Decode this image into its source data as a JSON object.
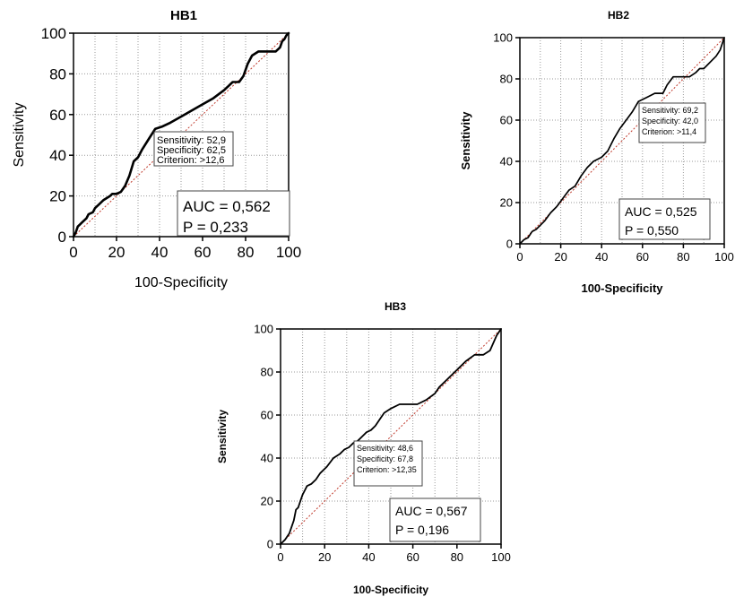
{
  "chart_data": [
    {
      "type": "line",
      "title": "HB1",
      "xlabel": "100-Specificity",
      "ylabel": "Sensitivity",
      "xlim": [
        0,
        100
      ],
      "ylim": [
        0,
        100
      ],
      "ticks": [
        0,
        20,
        40,
        60,
        80,
        100
      ],
      "grid": true,
      "series": [
        {
          "x": [
            0,
            1,
            2,
            3,
            4,
            6,
            7,
            9,
            10,
            12,
            14,
            17,
            18,
            20,
            22,
            24,
            26,
            28,
            30,
            32,
            35,
            38,
            41,
            45,
            50,
            55,
            60,
            65,
            70,
            74,
            77,
            79,
            81,
            83,
            86,
            88,
            90,
            92,
            94,
            96,
            97,
            98,
            99,
            100
          ],
          "y": [
            0,
            2,
            5,
            6,
            7,
            9,
            11,
            12,
            14,
            16,
            18,
            20,
            21,
            21,
            22,
            25,
            30,
            37,
            39,
            43,
            48,
            53,
            54,
            56,
            59,
            62,
            65,
            68,
            72,
            76,
            76,
            79,
            85,
            89,
            91,
            91,
            91,
            91,
            91,
            93,
            96,
            97,
            99,
            100
          ]
        }
      ],
      "annotation": {
        "lines": [
          "Sensitivity: 52,9",
          "Specificity: 62,5",
          "Criterion: >12,6"
        ]
      },
      "stats": {
        "auc": "AUC = 0,562",
        "p": "P = 0,233"
      }
    },
    {
      "type": "line",
      "title": "HB2",
      "xlabel": "100-Specificity",
      "ylabel": "Sensitivity",
      "xlim": [
        0,
        100
      ],
      "ylim": [
        0,
        100
      ],
      "ticks": [
        0,
        20,
        40,
        60,
        80,
        100
      ],
      "grid": true,
      "series": [
        {
          "x": [
            0,
            2,
            4,
            6,
            8,
            10,
            12,
            15,
            18,
            21,
            24,
            27,
            30,
            33,
            36,
            40,
            43,
            46,
            49,
            52,
            55,
            58,
            62,
            66,
            70,
            72,
            75,
            78,
            81,
            83,
            86,
            88,
            90,
            92,
            94,
            96,
            98,
            100
          ],
          "y": [
            0,
            2,
            3,
            6,
            7,
            9,
            11,
            15,
            18,
            22,
            26,
            28,
            33,
            37,
            40,
            42,
            45,
            51,
            56,
            60,
            64,
            69,
            71,
            73,
            73,
            77,
            81,
            81,
            81,
            81,
            83,
            85,
            85,
            87,
            89,
            91,
            94,
            100
          ]
        }
      ],
      "annotation": {
        "lines": [
          "Sensitivity: 69,2",
          "Specificity: 42,0",
          "Criterion: >11,4"
        ]
      },
      "stats": {
        "auc": "AUC = 0,525",
        "p": "P = 0,550"
      }
    },
    {
      "type": "line",
      "title": "HB3",
      "xlabel": "100-Specificity",
      "ylabel": "Sensitivity",
      "xlim": [
        0,
        100
      ],
      "ylim": [
        0,
        100
      ],
      "ticks": [
        0,
        20,
        40,
        60,
        80,
        100
      ],
      "grid": true,
      "series": [
        {
          "x": [
            0,
            2,
            4,
            5,
            6,
            7,
            8,
            9,
            10,
            11,
            12,
            14,
            16,
            18,
            21,
            24,
            27,
            29,
            31,
            33,
            35,
            37,
            39,
            41,
            43,
            45,
            47,
            50,
            54,
            58,
            62,
            66,
            70,
            72,
            75,
            78,
            81,
            84,
            88,
            92,
            95,
            98,
            100
          ],
          "y": [
            0,
            2,
            5,
            8,
            11,
            16,
            17,
            20,
            23,
            25,
            27,
            28,
            30,
            33,
            36,
            40,
            42,
            44,
            45,
            47,
            48,
            50,
            52,
            53,
            55,
            58,
            61,
            63,
            65,
            65,
            65,
            67,
            70,
            73,
            76,
            79,
            82,
            85,
            88,
            88,
            90,
            97,
            100
          ]
        }
      ],
      "annotation": {
        "lines": [
          "Sensitivity: 48,6",
          "Specificity: 67,8",
          "Criterion: >12,35"
        ]
      },
      "stats": {
        "auc": "AUC = 0,567",
        "p": "P = 0,196"
      }
    }
  ]
}
